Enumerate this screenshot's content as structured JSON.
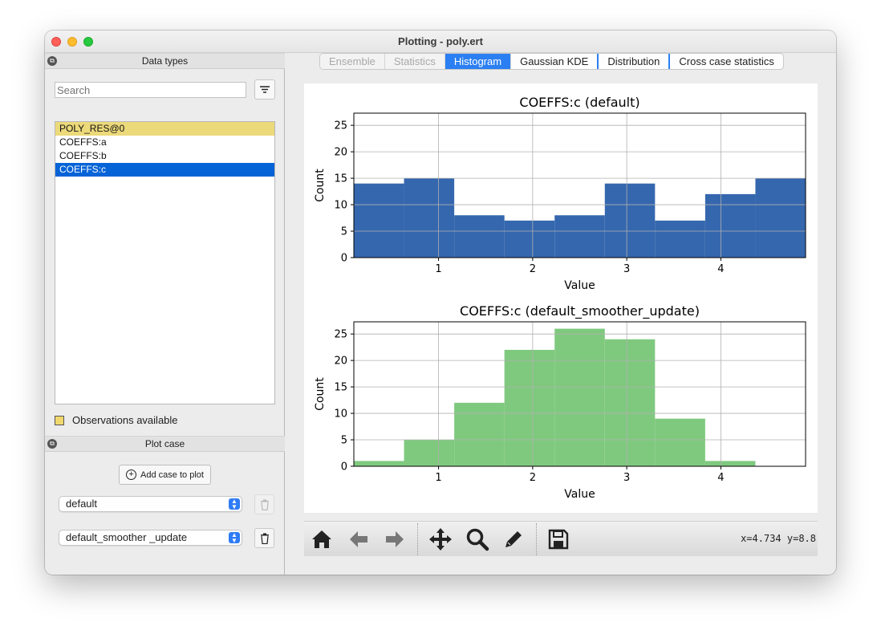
{
  "window": {
    "title": "Plotting - poly.ert"
  },
  "left_panel": {
    "data_types_header": "Data types",
    "search_placeholder": "Search",
    "items": [
      {
        "label": "POLY_RES@0",
        "has_observations": true
      },
      {
        "label": "COEFFS:a"
      },
      {
        "label": "COEFFS:b"
      },
      {
        "label": "COEFFS:c",
        "selected": true
      }
    ],
    "observations_label": "Observations available",
    "plot_case_header": "Plot case",
    "add_case_label": "Add case to plot",
    "cases": [
      "default",
      "default_smoother _update"
    ]
  },
  "tabs": [
    {
      "label": "Ensemble",
      "state": "disabled"
    },
    {
      "label": "Statistics",
      "state": "disabled"
    },
    {
      "label": "Histogram",
      "state": "active"
    },
    {
      "label": "Gaussian KDE",
      "state": "normal"
    },
    {
      "label": "Distribution",
      "state": "normal"
    },
    {
      "label": "Cross case statistics",
      "state": "normal"
    }
  ],
  "toolbar": {
    "icons": [
      "home-icon",
      "back-icon",
      "forward-icon",
      "pan-icon",
      "zoom-icon",
      "edit-icon",
      "save-icon"
    ],
    "coords": "x=4.734 y=8.8"
  },
  "chart_data": [
    {
      "type": "bar",
      "title": "COEFFS:c (default)",
      "xlabel": "Value",
      "ylabel": "Count",
      "xlim": [
        0.1,
        4.9
      ],
      "ylim": [
        0,
        27.3
      ],
      "xticks": [
        1,
        2,
        3,
        4
      ],
      "yticks": [
        0,
        5,
        10,
        15,
        20,
        25
      ],
      "grid": true,
      "color": "#3567ae",
      "bin_edges": [
        0.1,
        0.6333,
        1.1667,
        1.7,
        2.2333,
        2.7667,
        3.3,
        3.8333,
        4.3667,
        4.9
      ],
      "values": [
        14,
        15,
        8,
        7,
        8,
        14,
        7,
        12,
        15
      ]
    },
    {
      "type": "bar",
      "title": "COEFFS:c (default_smoother_update)",
      "xlabel": "Value",
      "ylabel": "Count",
      "xlim": [
        0.1,
        4.9
      ],
      "ylim": [
        0,
        27.3
      ],
      "xticks": [
        1,
        2,
        3,
        4
      ],
      "yticks": [
        0,
        5,
        10,
        15,
        20,
        25
      ],
      "grid": true,
      "color": "#7fc97f",
      "bin_edges": [
        0.1,
        0.6333,
        1.1667,
        1.7,
        2.2333,
        2.7667,
        3.3,
        3.8333,
        4.3667
      ],
      "values": [
        1,
        5,
        12,
        22,
        26,
        24,
        9,
        1
      ]
    }
  ]
}
